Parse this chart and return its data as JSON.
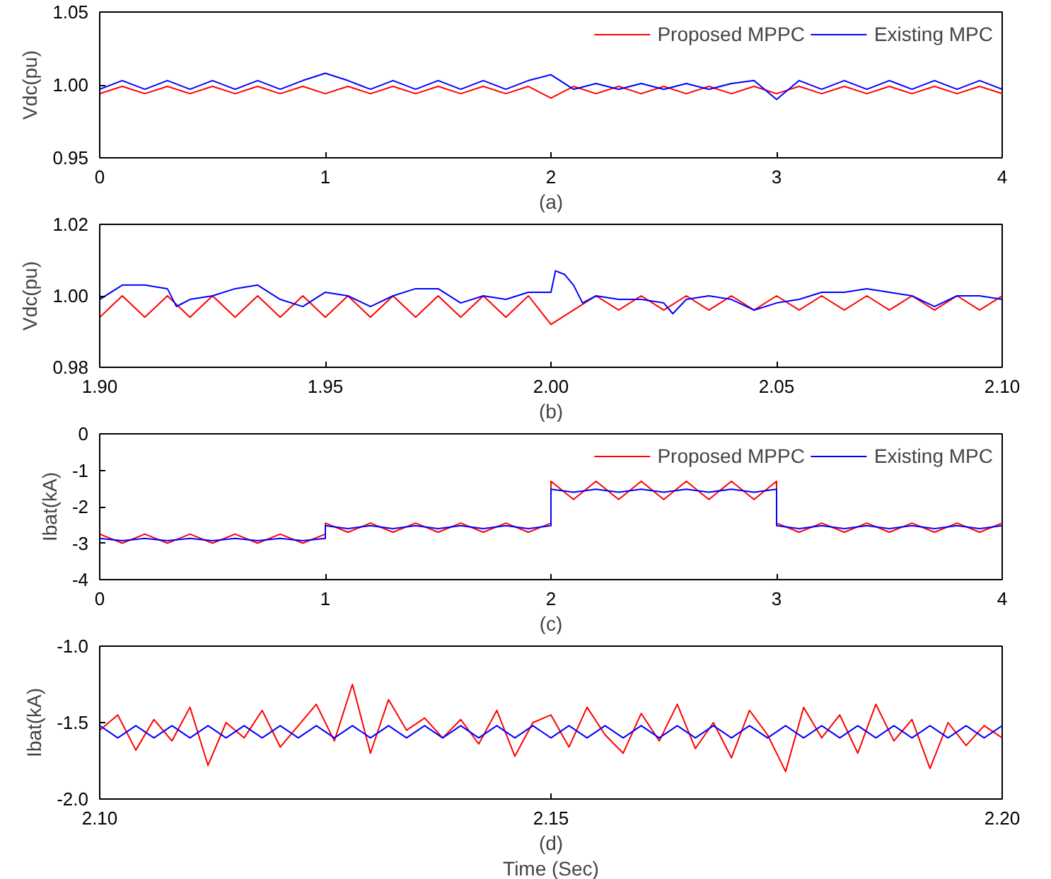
{
  "chart_data": [
    {
      "type": "line",
      "ylabel": "Vdc(pu)",
      "annotations": [
        "(a)"
      ],
      "xlim": [
        0,
        4
      ],
      "xticks": [
        0,
        1,
        2,
        3,
        4
      ],
      "ylim": [
        0.95,
        1.05
      ],
      "yticks": [
        {
          "value": 0.95,
          "label": "0.95"
        },
        {
          "value": 1.0,
          "label": "1.00"
        },
        {
          "value": 1.05,
          "label": "1.05"
        }
      ],
      "grid": false,
      "legend": "top right",
      "x": [
        0,
        0.1,
        0.2,
        0.3,
        0.4,
        0.5,
        0.6,
        0.7,
        0.8,
        0.9,
        1.0,
        1.1,
        1.2,
        1.3,
        1.4,
        1.5,
        1.6,
        1.7,
        1.8,
        1.9,
        2.0,
        2.1,
        2.2,
        2.3,
        2.4,
        2.5,
        2.6,
        2.7,
        2.8,
        2.9,
        3.0,
        3.1,
        3.2,
        3.3,
        3.4,
        3.5,
        3.6,
        3.7,
        3.8,
        3.9,
        4.0
      ],
      "series": [
        {
          "name": "Proposed MPPC",
          "color": "#ff0000",
          "values": [
            0.994,
            0.999,
            0.994,
            0.999,
            0.994,
            0.999,
            0.994,
            0.999,
            0.994,
            0.999,
            0.994,
            0.999,
            0.994,
            0.999,
            0.994,
            0.999,
            0.994,
            0.999,
            0.994,
            0.999,
            0.991,
            0.999,
            0.994,
            0.999,
            0.994,
            0.999,
            0.994,
            0.999,
            0.994,
            0.999,
            0.994,
            0.999,
            0.994,
            0.999,
            0.994,
            0.999,
            0.994,
            0.999,
            0.994,
            0.999,
            0.994
          ]
        },
        {
          "name": "Existing MPC",
          "color": "#0000ff",
          "values": [
            0.997,
            1.003,
            0.997,
            1.003,
            0.997,
            1.003,
            0.997,
            1.003,
            0.997,
            1.003,
            1.008,
            1.003,
            0.997,
            1.003,
            0.997,
            1.003,
            0.997,
            1.003,
            0.997,
            1.003,
            1.007,
            0.997,
            1.001,
            0.997,
            1.001,
            0.997,
            1.001,
            0.997,
            1.001,
            1.003,
            0.99,
            1.003,
            0.997,
            1.003,
            0.997,
            1.003,
            0.997,
            1.003,
            0.997,
            1.003,
            0.997
          ]
        }
      ]
    },
    {
      "type": "line",
      "ylabel": "Vdc(pu)",
      "annotations": [
        "(b)"
      ],
      "xlim": [
        1.9,
        2.1
      ],
      "xticks": [
        {
          "value": 1.9,
          "label": "1.90"
        },
        {
          "value": 1.95,
          "label": "1.95"
        },
        {
          "value": 2.0,
          "label": "2.00"
        },
        {
          "value": 2.05,
          "label": "2.05"
        },
        {
          "value": 2.1,
          "label": "2.10"
        }
      ],
      "ylim": [
        0.98,
        1.02
      ],
      "yticks": [
        {
          "value": 0.98,
          "label": "0.98"
        },
        {
          "value": 1.0,
          "label": "1.00"
        },
        {
          "value": 1.02,
          "label": "1.02"
        }
      ],
      "grid": false,
      "series": [
        {
          "color": "#ff0000",
          "x": [
            1.9,
            1.905,
            1.91,
            1.915,
            1.92,
            1.925,
            1.93,
            1.935,
            1.94,
            1.945,
            1.95,
            1.955,
            1.96,
            1.965,
            1.97,
            1.975,
            1.98,
            1.985,
            1.99,
            1.995,
            2.0,
            2.005,
            2.01,
            2.015,
            2.02,
            2.025,
            2.03,
            2.035,
            2.04,
            2.045,
            2.05,
            2.055,
            2.06,
            2.065,
            2.07,
            2.075,
            2.08,
            2.085,
            2.09,
            2.095,
            2.1
          ],
          "values": [
            0.994,
            1.0,
            0.994,
            1.0,
            0.994,
            1.0,
            0.994,
            1.0,
            0.994,
            1.0,
            0.994,
            1.0,
            0.994,
            1.0,
            0.994,
            1.0,
            0.994,
            1.0,
            0.994,
            1.0,
            0.992,
            0.996,
            1.0,
            0.996,
            1.0,
            0.996,
            1.0,
            0.996,
            1.0,
            0.996,
            1.0,
            0.996,
            1.0,
            0.996,
            1.0,
            0.996,
            1.0,
            0.996,
            1.0,
            0.996,
            1.0
          ]
        },
        {
          "color": "#0000ff",
          "x": [
            1.9,
            1.905,
            1.91,
            1.915,
            1.917,
            1.92,
            1.925,
            1.93,
            1.935,
            1.94,
            1.945,
            1.95,
            1.955,
            1.96,
            1.965,
            1.97,
            1.975,
            1.98,
            1.985,
            1.99,
            1.995,
            2.0,
            2.001,
            2.003,
            2.005,
            2.007,
            2.01,
            2.015,
            2.02,
            2.025,
            2.027,
            2.03,
            2.035,
            2.04,
            2.045,
            2.05,
            2.055,
            2.06,
            2.065,
            2.07,
            2.075,
            2.08,
            2.085,
            2.09,
            2.095,
            2.1
          ],
          "values": [
            0.999,
            1.003,
            1.003,
            1.002,
            0.997,
            0.999,
            1.0,
            1.002,
            1.003,
            0.999,
            0.997,
            1.001,
            1.0,
            0.997,
            1.0,
            1.002,
            1.002,
            0.998,
            1.0,
            0.999,
            1.001,
            1.001,
            1.007,
            1.006,
            1.003,
            0.998,
            1.0,
            0.999,
            0.999,
            0.998,
            0.995,
            0.999,
            1.0,
            0.999,
            0.996,
            0.998,
            0.999,
            1.001,
            1.001,
            1.002,
            1.001,
            1.0,
            0.997,
            1.0,
            1.0,
            0.999
          ]
        }
      ]
    },
    {
      "type": "line",
      "ylabel": "Ibat(kA)",
      "annotations": [
        "(c)"
      ],
      "xlim": [
        0,
        4
      ],
      "xticks": [
        0,
        1,
        2,
        3,
        4
      ],
      "ylim": [
        -4,
        0
      ],
      "yticks": [
        -4,
        -3,
        -2,
        -1,
        0
      ],
      "grid": false,
      "legend": "top right",
      "x": [
        0,
        0.1,
        0.2,
        0.3,
        0.4,
        0.5,
        0.6,
        0.7,
        0.8,
        0.9,
        1.0,
        1.0,
        1.1,
        1.2,
        1.3,
        1.4,
        1.5,
        1.6,
        1.7,
        1.8,
        1.9,
        2.0,
        2.0,
        2.1,
        2.2,
        2.3,
        2.4,
        2.5,
        2.6,
        2.7,
        2.8,
        2.9,
        3.0,
        3.0,
        3.1,
        3.2,
        3.3,
        3.4,
        3.5,
        3.6,
        3.7,
        3.8,
        3.9,
        4.0
      ],
      "series": [
        {
          "name": "Proposed MPPC",
          "color": "#ff0000",
          "values": [
            -2.75,
            -3.0,
            -2.75,
            -3.0,
            -2.75,
            -3.0,
            -2.75,
            -3.0,
            -2.75,
            -3.0,
            -2.75,
            -2.45,
            -2.7,
            -2.45,
            -2.7,
            -2.45,
            -2.7,
            -2.45,
            -2.7,
            -2.45,
            -2.7,
            -2.45,
            -1.3,
            -1.8,
            -1.3,
            -1.8,
            -1.3,
            -1.8,
            -1.3,
            -1.8,
            -1.3,
            -1.8,
            -1.3,
            -2.45,
            -2.7,
            -2.45,
            -2.7,
            -2.45,
            -2.7,
            -2.45,
            -2.7,
            -2.45,
            -2.7,
            -2.45
          ]
        },
        {
          "name": "Existing MPC",
          "color": "#0000ff",
          "values": [
            -2.87,
            -2.93,
            -2.87,
            -2.93,
            -2.87,
            -2.93,
            -2.87,
            -2.93,
            -2.87,
            -2.93,
            -2.87,
            -2.52,
            -2.6,
            -2.52,
            -2.6,
            -2.52,
            -2.6,
            -2.52,
            -2.6,
            -2.52,
            -2.6,
            -2.52,
            -1.52,
            -1.6,
            -1.52,
            -1.6,
            -1.52,
            -1.6,
            -1.52,
            -1.6,
            -1.52,
            -1.6,
            -1.52,
            -2.52,
            -2.6,
            -2.52,
            -2.6,
            -2.52,
            -2.6,
            -2.52,
            -2.6,
            -2.52,
            -2.6,
            -2.52
          ]
        }
      ]
    },
    {
      "type": "line",
      "ylabel": "Ibat(kA)",
      "xlabel": "Time (Sec)",
      "annotations": [
        "(d)"
      ],
      "xlim": [
        2.1,
        2.2
      ],
      "xticks": [
        {
          "value": 2.1,
          "label": "2.10"
        },
        {
          "value": 2.15,
          "label": "2.15"
        },
        {
          "value": 2.2,
          "label": "2.20"
        }
      ],
      "ylim": [
        -2.0,
        -1.0
      ],
      "yticks": [
        {
          "value": -2.0,
          "label": "-2.0"
        },
        {
          "value": -1.5,
          "label": "-1.5"
        },
        {
          "value": -1.0,
          "label": "-1.0"
        }
      ],
      "grid": false,
      "x": [
        2.1,
        2.102,
        2.104,
        2.106,
        2.108,
        2.11,
        2.112,
        2.114,
        2.116,
        2.118,
        2.12,
        2.122,
        2.124,
        2.126,
        2.128,
        2.13,
        2.132,
        2.134,
        2.136,
        2.138,
        2.14,
        2.142,
        2.144,
        2.146,
        2.148,
        2.15,
        2.152,
        2.154,
        2.156,
        2.158,
        2.16,
        2.162,
        2.164,
        2.166,
        2.168,
        2.17,
        2.172,
        2.174,
        2.176,
        2.178,
        2.18,
        2.182,
        2.184,
        2.186,
        2.188,
        2.19,
        2.192,
        2.194,
        2.196,
        2.198,
        2.2
      ],
      "series": [
        {
          "color": "#ff0000",
          "values": [
            -1.55,
            -1.45,
            -1.68,
            -1.48,
            -1.62,
            -1.4,
            -1.78,
            -1.5,
            -1.6,
            -1.42,
            -1.66,
            -1.52,
            -1.38,
            -1.62,
            -1.25,
            -1.7,
            -1.35,
            -1.55,
            -1.47,
            -1.6,
            -1.48,
            -1.64,
            -1.42,
            -1.72,
            -1.5,
            -1.45,
            -1.66,
            -1.4,
            -1.58,
            -1.7,
            -1.44,
            -1.62,
            -1.38,
            -1.67,
            -1.5,
            -1.73,
            -1.42,
            -1.58,
            -1.82,
            -1.4,
            -1.6,
            -1.45,
            -1.7,
            -1.38,
            -1.62,
            -1.48,
            -1.8,
            -1.5,
            -1.65,
            -1.52,
            -1.6
          ]
        },
        {
          "color": "#0000ff",
          "values": [
            -1.52,
            -1.6,
            -1.52,
            -1.6,
            -1.52,
            -1.6,
            -1.52,
            -1.6,
            -1.52,
            -1.6,
            -1.52,
            -1.6,
            -1.52,
            -1.6,
            -1.52,
            -1.6,
            -1.52,
            -1.6,
            -1.52,
            -1.6,
            -1.52,
            -1.6,
            -1.52,
            -1.6,
            -1.52,
            -1.6,
            -1.52,
            -1.6,
            -1.52,
            -1.6,
            -1.52,
            -1.6,
            -1.52,
            -1.6,
            -1.52,
            -1.6,
            -1.52,
            -1.6,
            -1.52,
            -1.6,
            -1.52,
            -1.6,
            -1.52,
            -1.6,
            -1.52,
            -1.6,
            -1.52,
            -1.6,
            -1.52,
            -1.6,
            -1.52
          ]
        }
      ]
    }
  ]
}
